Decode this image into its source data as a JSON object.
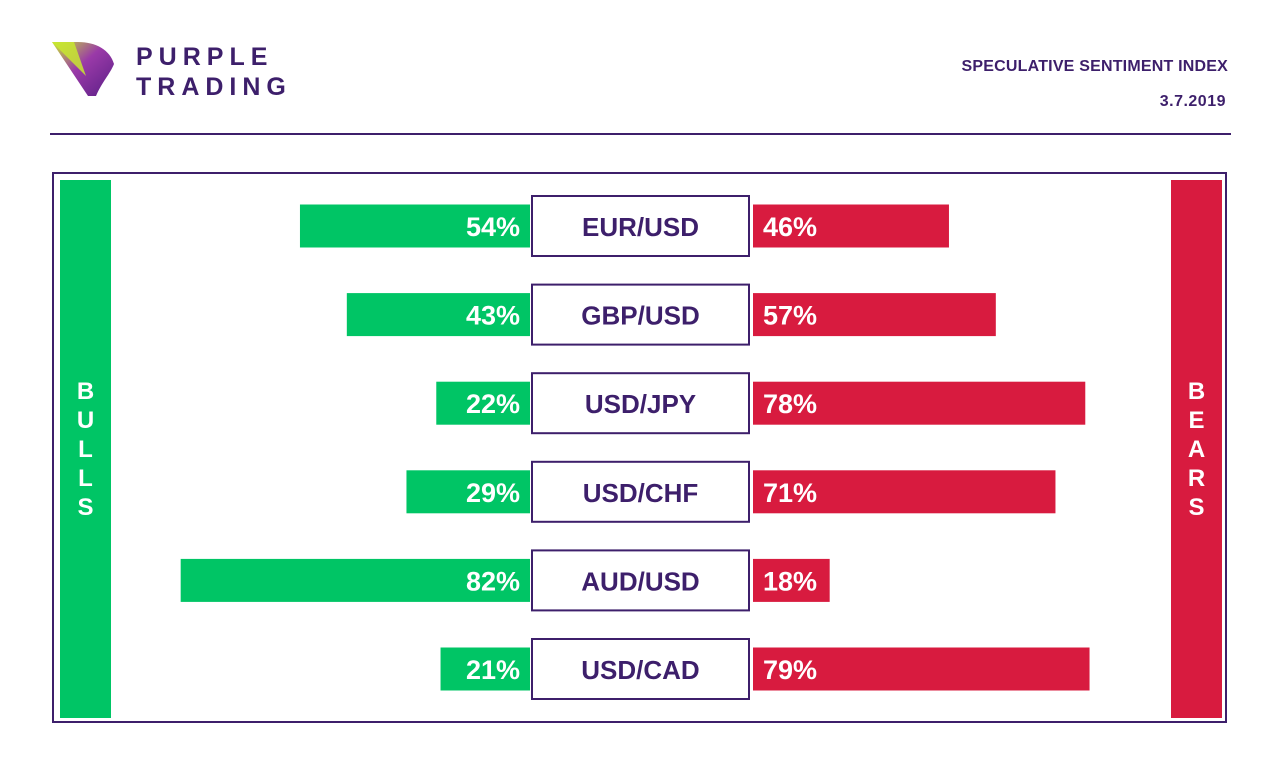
{
  "brand": {
    "line1": "PURPLE",
    "line2": "TRADING",
    "logo_icon": "purple-triangle-logo-icon"
  },
  "header": {
    "title": "SPECULATIVE SENTIMENT INDEX",
    "date": "3.7.2019"
  },
  "sides": {
    "left": "BULLS",
    "right": "BEARS"
  },
  "colors": {
    "brand": "#3d1f6b",
    "bulls": "#00c565",
    "bears": "#d81b3f",
    "logo_light": "#c8e830",
    "logo_dark": "#7a2a9a"
  },
  "chart_data": {
    "type": "bar",
    "orientation": "diverging-horizontal",
    "categories": [
      "EUR/USD",
      "GBP/USD",
      "USD/JPY",
      "USD/CHF",
      "AUD/USD",
      "USD/CAD"
    ],
    "series": [
      {
        "name": "BULLS",
        "values": [
          54,
          43,
          22,
          29,
          82,
          21
        ],
        "labels": [
          "54%",
          "43%",
          "22%",
          "29%",
          "82%",
          "21%"
        ]
      },
      {
        "name": "BEARS",
        "values": [
          46,
          57,
          78,
          71,
          18,
          79
        ],
        "labels": [
          "46%",
          "57%",
          "78%",
          "71%",
          "18%",
          "79%"
        ]
      }
    ],
    "unit": "%",
    "range": [
      0,
      100
    ]
  }
}
